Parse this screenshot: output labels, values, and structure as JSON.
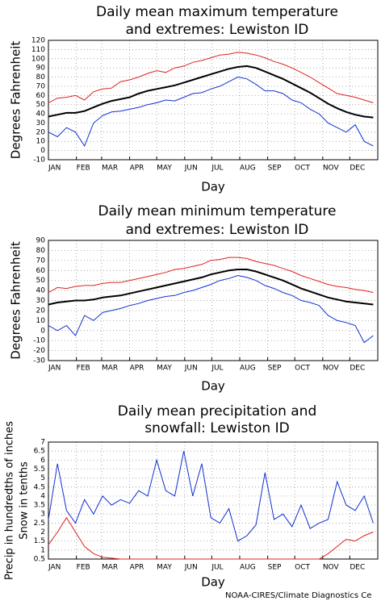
{
  "chart_data": [
    {
      "type": "line",
      "title": [
        "Daily mean maximum temperature",
        "and extremes: Lewiston ID"
      ],
      "xlabel": "Day",
      "ylabel": "Degrees Fahrenheit",
      "xlim": [
        1,
        366
      ],
      "xticks": [
        {
          "value": 1,
          "label": "JAN"
        },
        {
          "value": 32,
          "label": "FEB"
        },
        {
          "value": 60,
          "label": "MAR"
        },
        {
          "value": 91,
          "label": "APR"
        },
        {
          "value": 121,
          "label": "MAY"
        },
        {
          "value": 152,
          "label": "JUN"
        },
        {
          "value": 182,
          "label": "JUL"
        },
        {
          "value": 213,
          "label": "AUG"
        },
        {
          "value": 244,
          "label": "SEP"
        },
        {
          "value": 274,
          "label": "OCT"
        },
        {
          "value": 305,
          "label": "NOV"
        },
        {
          "value": 335,
          "label": "DEC"
        }
      ],
      "ylim": [
        -10,
        120
      ],
      "yticks": [
        -10,
        0,
        10,
        20,
        30,
        40,
        50,
        60,
        70,
        80,
        90,
        100,
        110,
        120
      ],
      "grid": true,
      "x": [
        1,
        11,
        21,
        31,
        41,
        51,
        61,
        71,
        81,
        91,
        101,
        111,
        121,
        131,
        141,
        151,
        161,
        171,
        181,
        191,
        201,
        211,
        221,
        231,
        241,
        251,
        261,
        271,
        281,
        291,
        301,
        311,
        321,
        331,
        341,
        351,
        361
      ],
      "series": [
        {
          "color": "#e02020",
          "values": [
            52,
            57,
            58,
            60,
            55,
            64,
            67,
            68,
            75,
            77,
            80,
            84,
            87,
            85,
            90,
            92,
            96,
            98,
            101,
            104,
            105,
            107,
            106,
            104,
            101,
            97,
            94,
            90,
            85,
            80,
            74,
            68,
            62,
            60,
            58,
            55,
            52
          ]
        },
        {
          "color": "#1030d0",
          "values": [
            20,
            15,
            25,
            20,
            5,
            30,
            38,
            42,
            43,
            45,
            47,
            50,
            52,
            55,
            54,
            58,
            62,
            63,
            67,
            70,
            75,
            80,
            78,
            72,
            65,
            65,
            62,
            55,
            52,
            45,
            40,
            30,
            25,
            20,
            28,
            10,
            5
          ]
        },
        {
          "color": "#000000",
          "values": [
            37,
            39,
            41,
            41,
            43,
            47,
            51,
            54,
            56,
            58,
            62,
            65,
            67,
            69,
            71,
            74,
            77,
            80,
            83,
            86,
            89,
            91,
            92,
            90,
            86,
            82,
            78,
            73,
            68,
            63,
            57,
            51,
            46,
            42,
            39,
            37,
            36
          ]
        }
      ]
    },
    {
      "type": "line",
      "title": [
        "Daily mean minimum temperature",
        "and extremes: Lewiston ID"
      ],
      "xlabel": "Day",
      "ylabel": "Degrees Fahrenheit",
      "xlim": [
        1,
        366
      ],
      "xticks": [
        {
          "value": 1,
          "label": "JAN"
        },
        {
          "value": 32,
          "label": "FEB"
        },
        {
          "value": 60,
          "label": "MAR"
        },
        {
          "value": 91,
          "label": "APR"
        },
        {
          "value": 121,
          "label": "MAY"
        },
        {
          "value": 152,
          "label": "JUN"
        },
        {
          "value": 182,
          "label": "JUL"
        },
        {
          "value": 213,
          "label": "AUG"
        },
        {
          "value": 244,
          "label": "SEP"
        },
        {
          "value": 274,
          "label": "OCT"
        },
        {
          "value": 305,
          "label": "NOV"
        },
        {
          "value": 335,
          "label": "DEC"
        }
      ],
      "ylim": [
        -30,
        90
      ],
      "yticks": [
        -30,
        -20,
        -10,
        0,
        10,
        20,
        30,
        40,
        50,
        60,
        70,
        80,
        90
      ],
      "grid": true,
      "x": [
        1,
        11,
        21,
        31,
        41,
        51,
        61,
        71,
        81,
        91,
        101,
        111,
        121,
        131,
        141,
        151,
        161,
        171,
        181,
        191,
        201,
        211,
        221,
        231,
        241,
        251,
        261,
        271,
        281,
        291,
        301,
        311,
        321,
        331,
        341,
        351,
        361
      ],
      "series": [
        {
          "color": "#e02020",
          "values": [
            38,
            43,
            42,
            44,
            45,
            45,
            47,
            48,
            48,
            50,
            52,
            54,
            56,
            58,
            61,
            62,
            64,
            66,
            70,
            71,
            73,
            73,
            72,
            69,
            67,
            65,
            62,
            59,
            55,
            52,
            49,
            46,
            44,
            43,
            41,
            40,
            38
          ]
        },
        {
          "color": "#1030d0",
          "values": [
            5,
            0,
            5,
            -5,
            15,
            10,
            18,
            20,
            22,
            25,
            27,
            30,
            32,
            34,
            35,
            38,
            40,
            43,
            46,
            50,
            52,
            55,
            53,
            50,
            45,
            42,
            38,
            35,
            30,
            28,
            25,
            15,
            10,
            8,
            5,
            -12,
            -5
          ]
        },
        {
          "color": "#000000",
          "values": [
            26,
            28,
            29,
            30,
            30,
            31,
            33,
            34,
            35,
            37,
            39,
            41,
            43,
            45,
            47,
            49,
            51,
            53,
            56,
            58,
            60,
            61,
            61,
            59,
            56,
            53,
            50,
            46,
            42,
            39,
            36,
            33,
            31,
            29,
            28,
            27,
            26
          ]
        }
      ]
    },
    {
      "type": "line",
      "title": [
        "Daily mean precipitation and",
        "snowfall: Lewiston ID"
      ],
      "xlabel": "Day",
      "ylabel": [
        "Precip in hundredths of inches",
        "Snow in tenths"
      ],
      "xlim": [
        1,
        366
      ],
      "xticks": [
        {
          "value": 1,
          "label": "JAN"
        },
        {
          "value": 32,
          "label": "FEB"
        },
        {
          "value": 60,
          "label": "MAR"
        },
        {
          "value": 91,
          "label": "APR"
        },
        {
          "value": 121,
          "label": "MAY"
        },
        {
          "value": 152,
          "label": "JUN"
        },
        {
          "value": 182,
          "label": "JUL"
        },
        {
          "value": 213,
          "label": "AUG"
        },
        {
          "value": 244,
          "label": "SEP"
        },
        {
          "value": 274,
          "label": "OCT"
        },
        {
          "value": 305,
          "label": "NOV"
        },
        {
          "value": 335,
          "label": "DEC"
        }
      ],
      "ylim": [
        0.5,
        7
      ],
      "yticks": [
        0.5,
        1,
        1.5,
        2,
        2.5,
        3,
        3.5,
        4,
        4.5,
        5,
        5.5,
        6,
        6.5,
        7
      ],
      "grid": true,
      "x": [
        1,
        11,
        21,
        31,
        41,
        51,
        61,
        71,
        81,
        91,
        101,
        111,
        121,
        131,
        141,
        151,
        161,
        171,
        181,
        191,
        201,
        211,
        221,
        231,
        241,
        251,
        261,
        271,
        281,
        291,
        301,
        311,
        321,
        331,
        341,
        351,
        361
      ],
      "series": [
        {
          "color": "#1030d0",
          "values": [
            2.7,
            5.8,
            3.2,
            2.5,
            3.8,
            3.0,
            4.0,
            3.5,
            3.8,
            3.6,
            4.3,
            4.0,
            6.0,
            4.3,
            4.0,
            6.5,
            4.0,
            5.8,
            2.8,
            2.5,
            3.3,
            1.5,
            1.8,
            2.4,
            5.3,
            2.7,
            3.0,
            2.3,
            3.5,
            2.2,
            2.5,
            2.7,
            4.8,
            3.5,
            3.2,
            4.0,
            2.5
          ]
        },
        {
          "color": "#e02020",
          "values": [
            1.3,
            2.0,
            2.8,
            2.0,
            1.2,
            0.8,
            0.6,
            0.55,
            0.5,
            0.5,
            0.5,
            0.5,
            0.5,
            0.5,
            0.5,
            0.5,
            0.5,
            0.5,
            0.5,
            0.5,
            0.5,
            0.5,
            0.5,
            0.5,
            0.5,
            0.5,
            0.5,
            0.5,
            0.5,
            0.5,
            0.5,
            0.8,
            1.2,
            1.6,
            1.5,
            1.8,
            2.0
          ]
        }
      ]
    }
  ],
  "credit": "NOAA-CIRES/Climate Diagnostics Ce"
}
